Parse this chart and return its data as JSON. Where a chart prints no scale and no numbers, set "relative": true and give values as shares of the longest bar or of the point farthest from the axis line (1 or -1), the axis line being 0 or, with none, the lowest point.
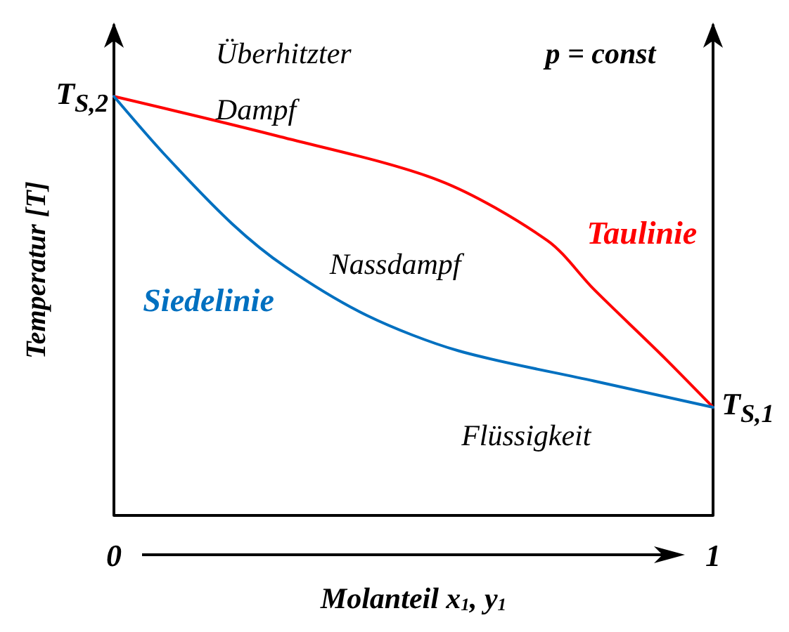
{
  "chart_data": {
    "type": "line",
    "relative": true,
    "xlabel": "Molanteil x$_{1}$, y$_{1}$",
    "ylabel": "Temperatur [T]",
    "xlim": [
      0,
      1
    ],
    "xticks": [
      0,
      1
    ],
    "grid": false,
    "legend": false,
    "marker": "none",
    "line_style": "solid",
    "series": [
      {
        "name": "Taulinie",
        "color": "#ff0000",
        "x": [
          0,
          0.271,
          0.543,
          0.724,
          0.801,
          0.914,
          1
        ],
        "values": [
          1,
          0.906,
          0.799,
          0.655,
          0.539,
          0.382,
          0.257
        ]
      },
      {
        "name": "Siedelinie",
        "color": "#0070c0",
        "x": [
          0,
          0.084,
          0.197,
          0.287,
          0.423,
          0.575,
          0.801,
          1
        ],
        "values": [
          1,
          0.862,
          0.696,
          0.592,
          0.476,
          0.392,
          0.32,
          0.257
        ]
      }
    ],
    "annotations": [
      {
        "text": "T$_{S,2}$",
        "x": 0,
        "y": 1
      },
      {
        "text": "T$_{S,1}$",
        "x": 1,
        "y": 0.257
      },
      "Überhitzter Dampf",
      "p = const",
      "Nassdampf",
      "Flüssigkeit"
    ]
  }
}
